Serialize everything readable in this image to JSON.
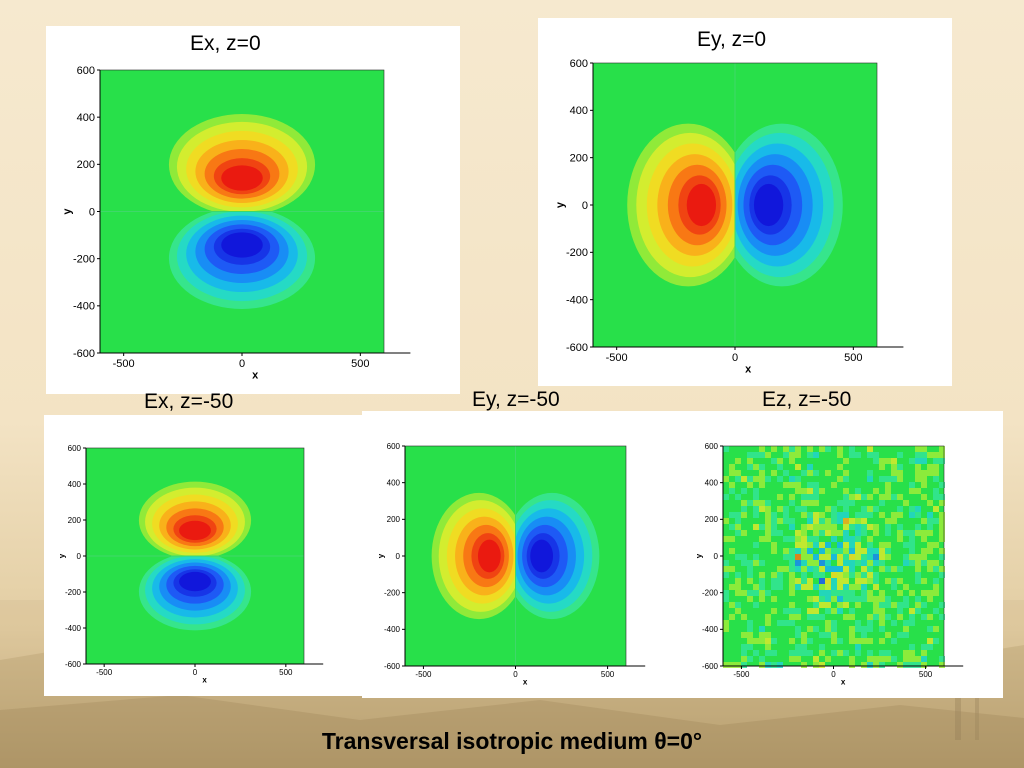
{
  "slide": {
    "caption": "Transversal isotropic medium θ=0°"
  },
  "colors": {
    "background": "#f4e6c8",
    "field_zero": "#28e04a",
    "positive_peak": "#e81010",
    "negative_peak": "#1010d8"
  },
  "plots": [
    {
      "id": "ex-z0",
      "title": "Ex, z=0",
      "field": "Ex",
      "pattern": "vertical-dipole",
      "x_label": "x",
      "y_label": "y",
      "x_ticks": [
        "-500",
        "0",
        "500"
      ],
      "y_ticks": [
        "600",
        "400",
        "200",
        "0",
        "-200",
        "-400",
        "-600"
      ],
      "xlim": [
        -600,
        600
      ],
      "ylim": [
        -600,
        600
      ]
    },
    {
      "id": "ey-z0",
      "title": "Ey, z=0",
      "field": "Ey",
      "pattern": "horizontal-dipole",
      "x_label": "x",
      "y_label": "y",
      "x_ticks": [
        "-500",
        "0",
        "500"
      ],
      "y_ticks": [
        "600",
        "400",
        "200",
        "0",
        "-200",
        "-400",
        "-600"
      ],
      "xlim": [
        -600,
        600
      ],
      "ylim": [
        -600,
        600
      ]
    },
    {
      "id": "ex-z-50",
      "title": "Ex, z=-50",
      "field": "Ex",
      "pattern": "vertical-dipole",
      "x_label": "x",
      "y_label": "y",
      "x_ticks": [
        "-500",
        "0",
        "500"
      ],
      "y_ticks": [
        "600",
        "400",
        "200",
        "0",
        "-200",
        "-400",
        "-600"
      ],
      "xlim": [
        -600,
        600
      ],
      "ylim": [
        -600,
        600
      ]
    },
    {
      "id": "ey-z-50",
      "title": "Ey, z=-50",
      "field": "Ey",
      "pattern": "horizontal-dipole",
      "x_label": "x",
      "y_label": "y",
      "x_ticks": [
        "-500",
        "0",
        "500"
      ],
      "y_ticks": [
        "600",
        "400",
        "200",
        "0",
        "-200",
        "-400",
        "-600"
      ],
      "xlim": [
        -600,
        600
      ],
      "ylim": [
        -600,
        600
      ]
    },
    {
      "id": "ez-z-50",
      "title": "Ez, z=-50",
      "field": "Ez",
      "pattern": "noise",
      "x_label": "x",
      "y_label": "y",
      "x_ticks": [
        "-500",
        "0",
        "500"
      ],
      "y_ticks": [
        "600",
        "400",
        "200",
        "0",
        "-200",
        "-400",
        "-600"
      ],
      "xlim": [
        -600,
        600
      ],
      "ylim": [
        -600,
        600
      ]
    }
  ]
}
